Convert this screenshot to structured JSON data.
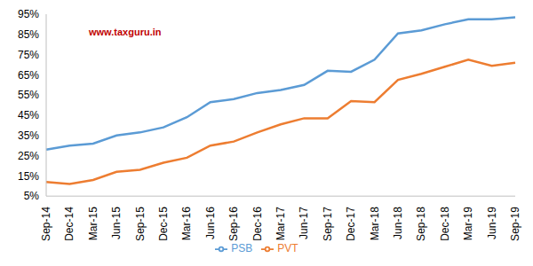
{
  "chart_data": {
    "type": "line",
    "annotations": [
      "www.taxguru.in"
    ],
    "categories": [
      "Sep-14",
      "Dec-14",
      "Mar-15",
      "Jun-15",
      "Sep-15",
      "Dec-15",
      "Mar-16",
      "Jun-16",
      "Sep-16",
      "Dec-16",
      "Mar-17",
      "Jun-17",
      "Sep-17",
      "Dec-17",
      "Mar-18",
      "Jun-18",
      "Sep-18",
      "Dec-18",
      "Mar-19",
      "Jun-19",
      "Sep-19"
    ],
    "series": [
      {
        "name": "PSB",
        "color": "#5b9bd5",
        "values": [
          28,
          30,
          31,
          35,
          36.5,
          39,
          44,
          51.5,
          53,
          56,
          57.5,
          60,
          67,
          66.5,
          72.5,
          85.5,
          87,
          90,
          92.5,
          92.5,
          93.5
        ]
      },
      {
        "name": "PVT",
        "color": "#ed7d31",
        "values": [
          12,
          11,
          13,
          17,
          18,
          21.5,
          24,
          30,
          32,
          36.5,
          40.5,
          43.5,
          43.5,
          52,
          51.5,
          62.5,
          65.5,
          69,
          72.5,
          69.5,
          71
        ]
      }
    ],
    "ylim": [
      5,
      95
    ],
    "yticks": [
      {
        "value": 5,
        "label": "5%"
      },
      {
        "value": 15,
        "label": "15%"
      },
      {
        "value": 25,
        "label": "25%"
      },
      {
        "value": 35,
        "label": "35%"
      },
      {
        "value": 45,
        "label": "45%"
      },
      {
        "value": 55,
        "label": "55%"
      },
      {
        "value": 65,
        "label": "65%"
      },
      {
        "value": 75,
        "label": "75%"
      },
      {
        "value": 85,
        "label": "85%"
      },
      {
        "value": 95,
        "label": "95%"
      }
    ],
    "grid": false,
    "legend": "bottom"
  }
}
